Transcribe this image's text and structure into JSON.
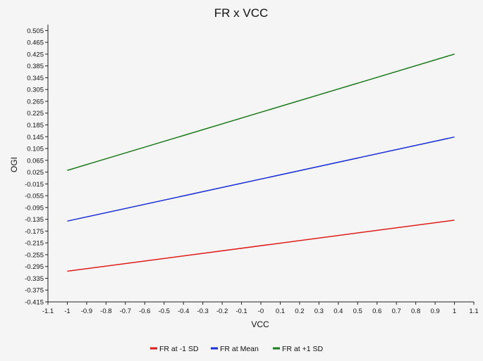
{
  "chart_data": {
    "type": "line",
    "title": "FR x VCC",
    "xlabel": "VCC",
    "ylabel": "OGI",
    "xlim": [
      -1.1,
      1.1
    ],
    "ylim": [
      -0.415,
      0.525
    ],
    "x_ticks": [
      "-1.1",
      "-1",
      "-0.9",
      "-0.8",
      "-0.7",
      "-0.6",
      "-0.5",
      "-0.4",
      "-0.3",
      "-0.2",
      "-0.1",
      "-0",
      "0.1",
      "0.2",
      "0.3",
      "0.4",
      "0.5",
      "0.6",
      "0.7",
      "0.8",
      "0.9",
      "1",
      "1.1"
    ],
    "y_ticks": [
      "0.505",
      "0.465",
      "0.425",
      "0.385",
      "0.345",
      "0.305",
      "0.265",
      "0.225",
      "0.185",
      "0.145",
      "0.105",
      "0.065",
      "0.025",
      "-0.015",
      "-0.055",
      "-0.095",
      "-0.135",
      "-0.175",
      "-0.215",
      "-0.255",
      "-0.295",
      "-0.335",
      "-0.375",
      "-0.415"
    ],
    "grid": false,
    "legend_position": "bottom",
    "series": [
      {
        "name": "FR at -1 SD",
        "color": "#e01b1b",
        "x": [
          -1,
          1
        ],
        "y": [
          -0.311,
          -0.138
        ]
      },
      {
        "name": "FR at Mean",
        "color": "#1a2fd6",
        "x": [
          -1,
          1
        ],
        "y": [
          -0.141,
          0.144
        ]
      },
      {
        "name": "FR at +1 SD",
        "color": "#1b7a1b",
        "x": [
          -1,
          1
        ],
        "y": [
          0.031,
          0.425
        ]
      }
    ]
  }
}
